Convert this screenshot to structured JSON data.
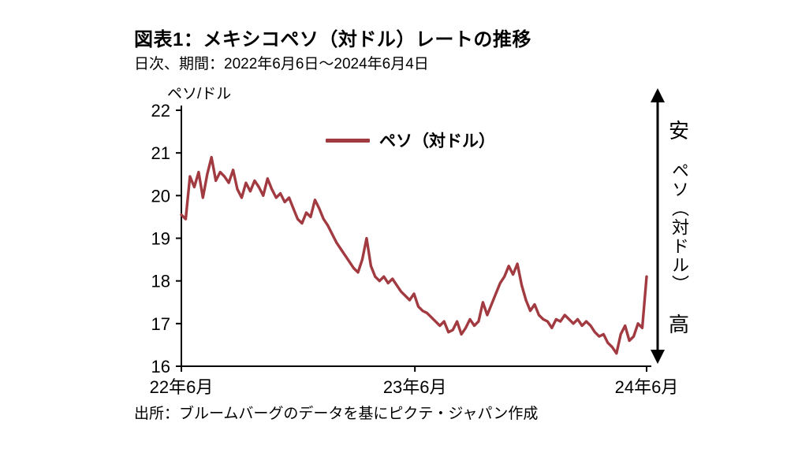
{
  "header": {
    "title": "図表1：メキシコペソ（対ドル）レートの推移",
    "subtitle": "日次、期間：2022年6月6日～2024年6月4日"
  },
  "chart_data": {
    "type": "line",
    "title": "メキシコペソ（対ドル）レートの推移",
    "unit_label": "ペソ/ドル",
    "xlabel": "",
    "ylabel": "ペソ/ドル",
    "ylim": [
      16,
      22
    ],
    "yticks": [
      16,
      17,
      18,
      19,
      20,
      21,
      22
    ],
    "xticks": [
      {
        "label": "22年6月",
        "pos": 0.0
      },
      {
        "label": "23年6月",
        "pos": 0.502
      },
      {
        "label": "24年6月",
        "pos": 1.0
      }
    ],
    "grid": false,
    "legend_position": "top-center",
    "series": [
      {
        "name": "ペソ（対ドル）",
        "color": "#A23B41",
        "values": [
          19.55,
          19.45,
          20.45,
          20.2,
          20.55,
          19.95,
          20.5,
          20.9,
          20.35,
          20.55,
          20.45,
          20.3,
          20.6,
          20.15,
          19.95,
          20.3,
          20.1,
          20.35,
          20.2,
          20.0,
          20.4,
          20.15,
          19.95,
          20.05,
          19.85,
          19.95,
          19.7,
          19.45,
          19.35,
          19.6,
          19.5,
          19.9,
          19.7,
          19.45,
          19.3,
          19.1,
          18.9,
          18.75,
          18.6,
          18.45,
          18.3,
          18.2,
          18.5,
          19.0,
          18.35,
          18.1,
          18.0,
          18.1,
          17.95,
          18.05,
          17.9,
          17.75,
          17.65,
          17.55,
          17.7,
          17.4,
          17.3,
          17.25,
          17.15,
          17.05,
          16.95,
          17.05,
          16.8,
          16.85,
          17.05,
          16.75,
          16.9,
          17.1,
          16.95,
          17.05,
          17.5,
          17.2,
          17.45,
          17.7,
          17.95,
          18.1,
          18.35,
          18.15,
          18.4,
          17.9,
          17.55,
          17.3,
          17.45,
          17.2,
          17.1,
          17.05,
          16.9,
          17.1,
          17.05,
          17.2,
          17.1,
          17.0,
          17.1,
          16.95,
          17.05,
          16.95,
          16.8,
          16.7,
          16.75,
          16.55,
          16.45,
          16.3,
          16.75,
          16.95,
          16.6,
          16.7,
          17.0,
          16.9,
          18.1
        ]
      }
    ]
  },
  "legend": {
    "series_label": "ペソ（対ドル）"
  },
  "annotation": {
    "top_label": "安",
    "middle_label": "ペソ（対ドル）",
    "bottom_label": "高"
  },
  "footer": {
    "source": "出所：ブルームバーグのデータを基にピクテ・ジャパン作成"
  }
}
